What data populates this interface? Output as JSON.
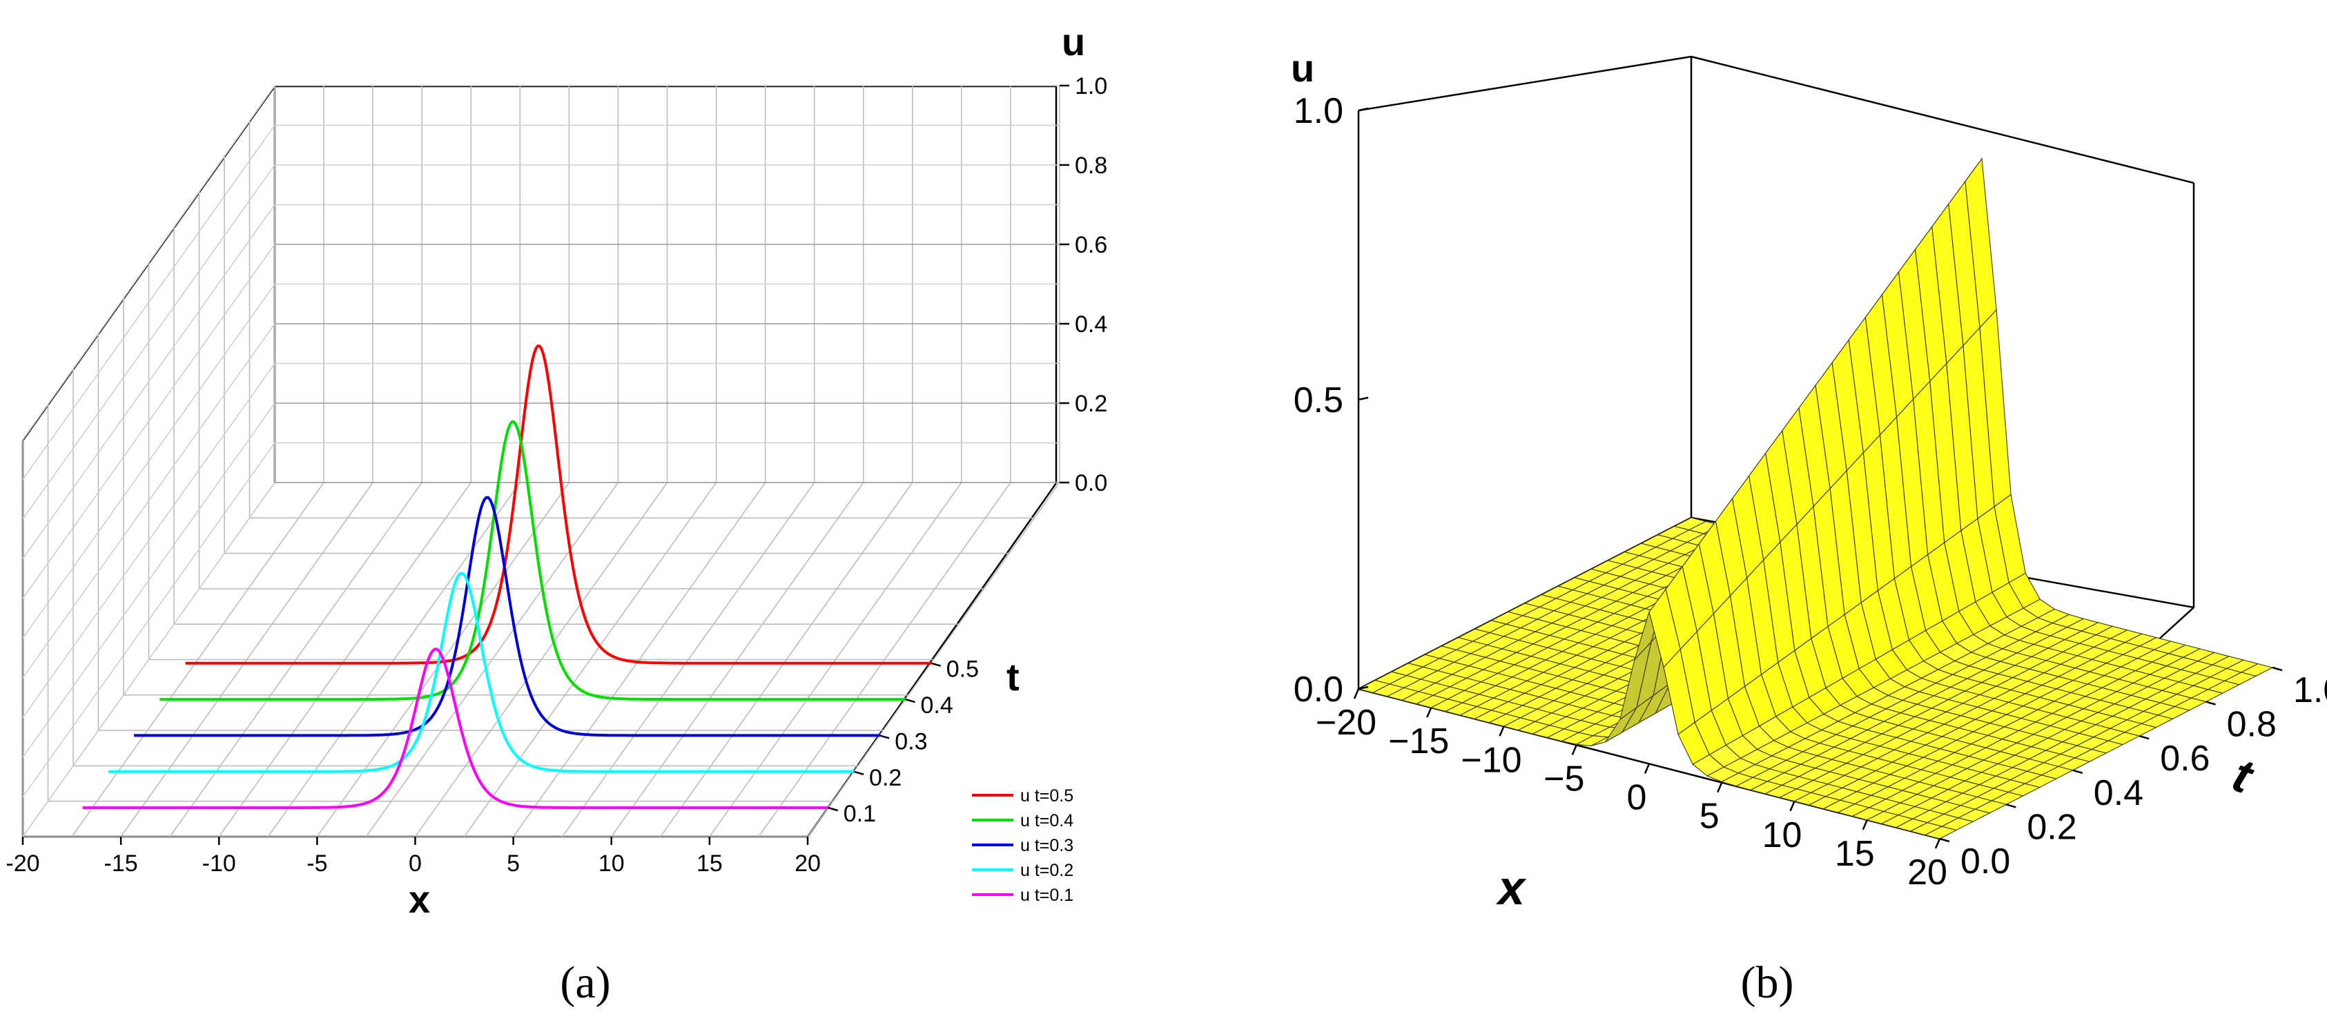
{
  "chart_data": [
    {
      "panel": "a",
      "type": "line",
      "caption": "(a)",
      "chart_style": "3d-waterfall",
      "x_axis": {
        "label": "x",
        "ticks": [
          "-20",
          "-15",
          "-10",
          "-5",
          "0",
          "5",
          "10",
          "15",
          "20"
        ],
        "range": [
          -20,
          20
        ]
      },
      "t_axis": {
        "label": "t",
        "ticks": [
          "0.1",
          "0.2",
          "0.3",
          "0.4",
          "0.5"
        ],
        "range": [
          0.1,
          0.5
        ]
      },
      "u_axis": {
        "label": "u",
        "ticks": [
          "0.0",
          "0.2",
          "0.4",
          "0.6",
          "0.8",
          "1.0"
        ],
        "range": [
          0,
          1
        ]
      },
      "grid": true,
      "legend_position": "bottom-right",
      "series": [
        {
          "name": "u t=0.5",
          "t": 0.5,
          "peak_x": 0.0,
          "peak_u": 0.8,
          "color": "#ff0000"
        },
        {
          "name": "u t=0.4",
          "t": 0.4,
          "peak_x": 0.0,
          "peak_u": 0.7,
          "color": "#00e000"
        },
        {
          "name": "u t=0.3",
          "t": 0.3,
          "peak_x": 0.0,
          "peak_u": 0.6,
          "color": "#0000dd"
        },
        {
          "name": "u t=0.2",
          "t": 0.2,
          "peak_x": 0.0,
          "peak_u": 0.5,
          "color": "#00ffff"
        },
        {
          "name": "u t=0.1",
          "t": 0.1,
          "peak_x": 0.0,
          "peak_u": 0.4,
          "color": "#ff00ff"
        }
      ]
    },
    {
      "panel": "b",
      "type": "surface",
      "caption": "(b)",
      "surface_color": "#ffff00",
      "x_axis": {
        "label": "x",
        "ticks": [
          "−20",
          "−15",
          "−10",
          "−5",
          "0",
          "5",
          "10",
          "15",
          "20"
        ],
        "range": [
          -20,
          20
        ]
      },
      "t_axis": {
        "label": "t",
        "ticks": [
          "0.0",
          "0.2",
          "0.4",
          "0.6",
          "0.8",
          "1.0"
        ],
        "range": [
          0,
          1
        ]
      },
      "u_axis": {
        "label": "u",
        "ticks": [
          "0.0",
          "0.5",
          "1.0"
        ],
        "range": [
          0,
          1
        ]
      },
      "peak_u": 0.75,
      "peak_x": 0.0
    }
  ]
}
